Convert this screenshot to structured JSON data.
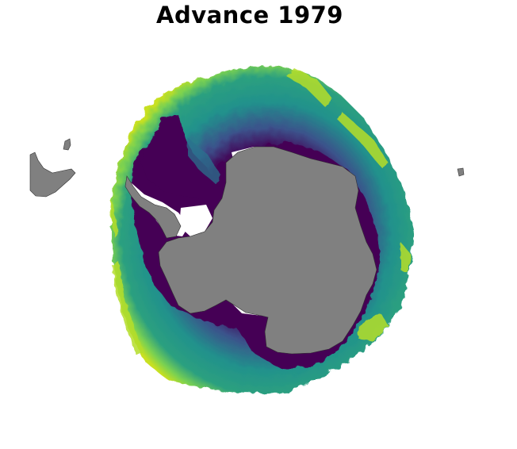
{
  "title": "Advance 1979",
  "colors": {
    "background": "#ffffff",
    "land": "#808080",
    "land_edge": "#333333",
    "ice_shelf_gap": "#ffffff",
    "colormap": "viridis",
    "viridis_stops": [
      "#440154",
      "#3b528b",
      "#21918c",
      "#5ec962",
      "#fde725"
    ]
  }
}
